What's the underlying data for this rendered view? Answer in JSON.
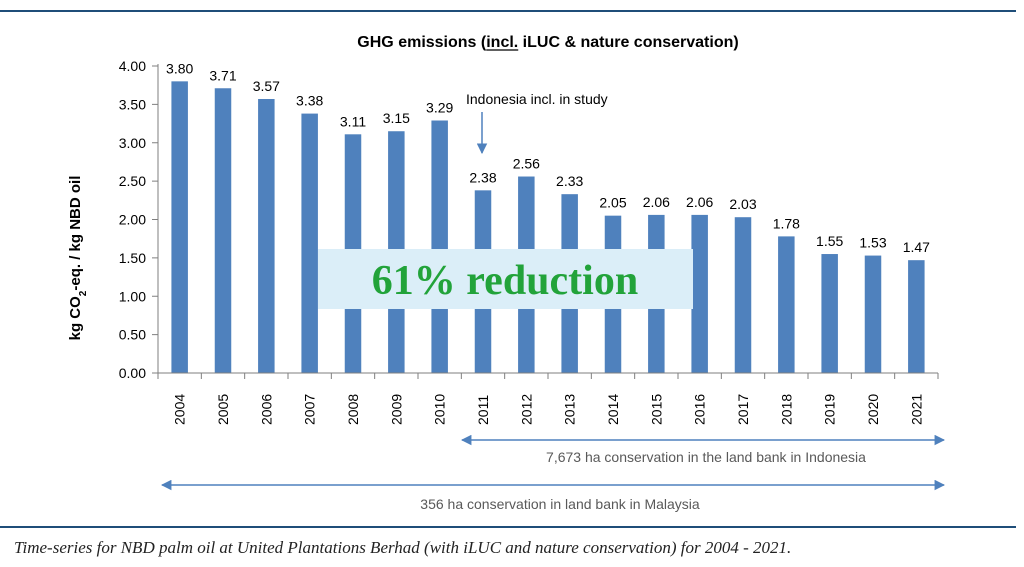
{
  "chart_data": {
    "type": "bar",
    "title": "GHG emissions (incl. iLUC &  nature conservation)",
    "title_underlined": "incl.",
    "ylabel": "kg CO2-eq. / kg NBD oil",
    "ylim": [
      0,
      4
    ],
    "yticks": [
      "0.00",
      "0.50",
      "1.00",
      "1.50",
      "2.00",
      "2.50",
      "3.00",
      "3.50",
      "4.00"
    ],
    "categories": [
      "2004",
      "2005",
      "2006",
      "2007",
      "2008",
      "2009",
      "2010",
      "2011",
      "2012",
      "2013",
      "2014",
      "2015",
      "2016",
      "2017",
      "2018",
      "2019",
      "2020",
      "2021"
    ],
    "values": [
      3.8,
      3.71,
      3.57,
      3.38,
      3.11,
      3.15,
      3.29,
      2.38,
      2.56,
      2.33,
      2.05,
      2.06,
      2.06,
      2.03,
      1.78,
      1.55,
      1.53,
      1.47
    ],
    "value_labels": [
      "3.80",
      "3.71",
      "3.57",
      "3.38",
      "3.11",
      "3.15",
      "3.29",
      "2.38",
      "2.56",
      "2.33",
      "2.05",
      "2.06",
      "2.06",
      "2.03",
      "1.78",
      "1.55",
      "1.53",
      "1.47"
    ],
    "bar_color": "#4f81bd",
    "grid": false,
    "annotations": {
      "indonesia_note": "Indonesia incl. in study",
      "reduction": "61% reduction",
      "indonesia_range": "7,673 ha conservation in the land bank in Indonesia",
      "malaysia_range": "356 ha conservation in land bank in Malaysia"
    },
    "reduction_color": "#22a33a",
    "reduction_box_color": "#dbeef8",
    "arrow_color": "#4f81bd"
  },
  "caption": "Time-series for NBD palm oil at United Plantations Berhad (with iLUC and nature conservation) for 2004 - 2021."
}
